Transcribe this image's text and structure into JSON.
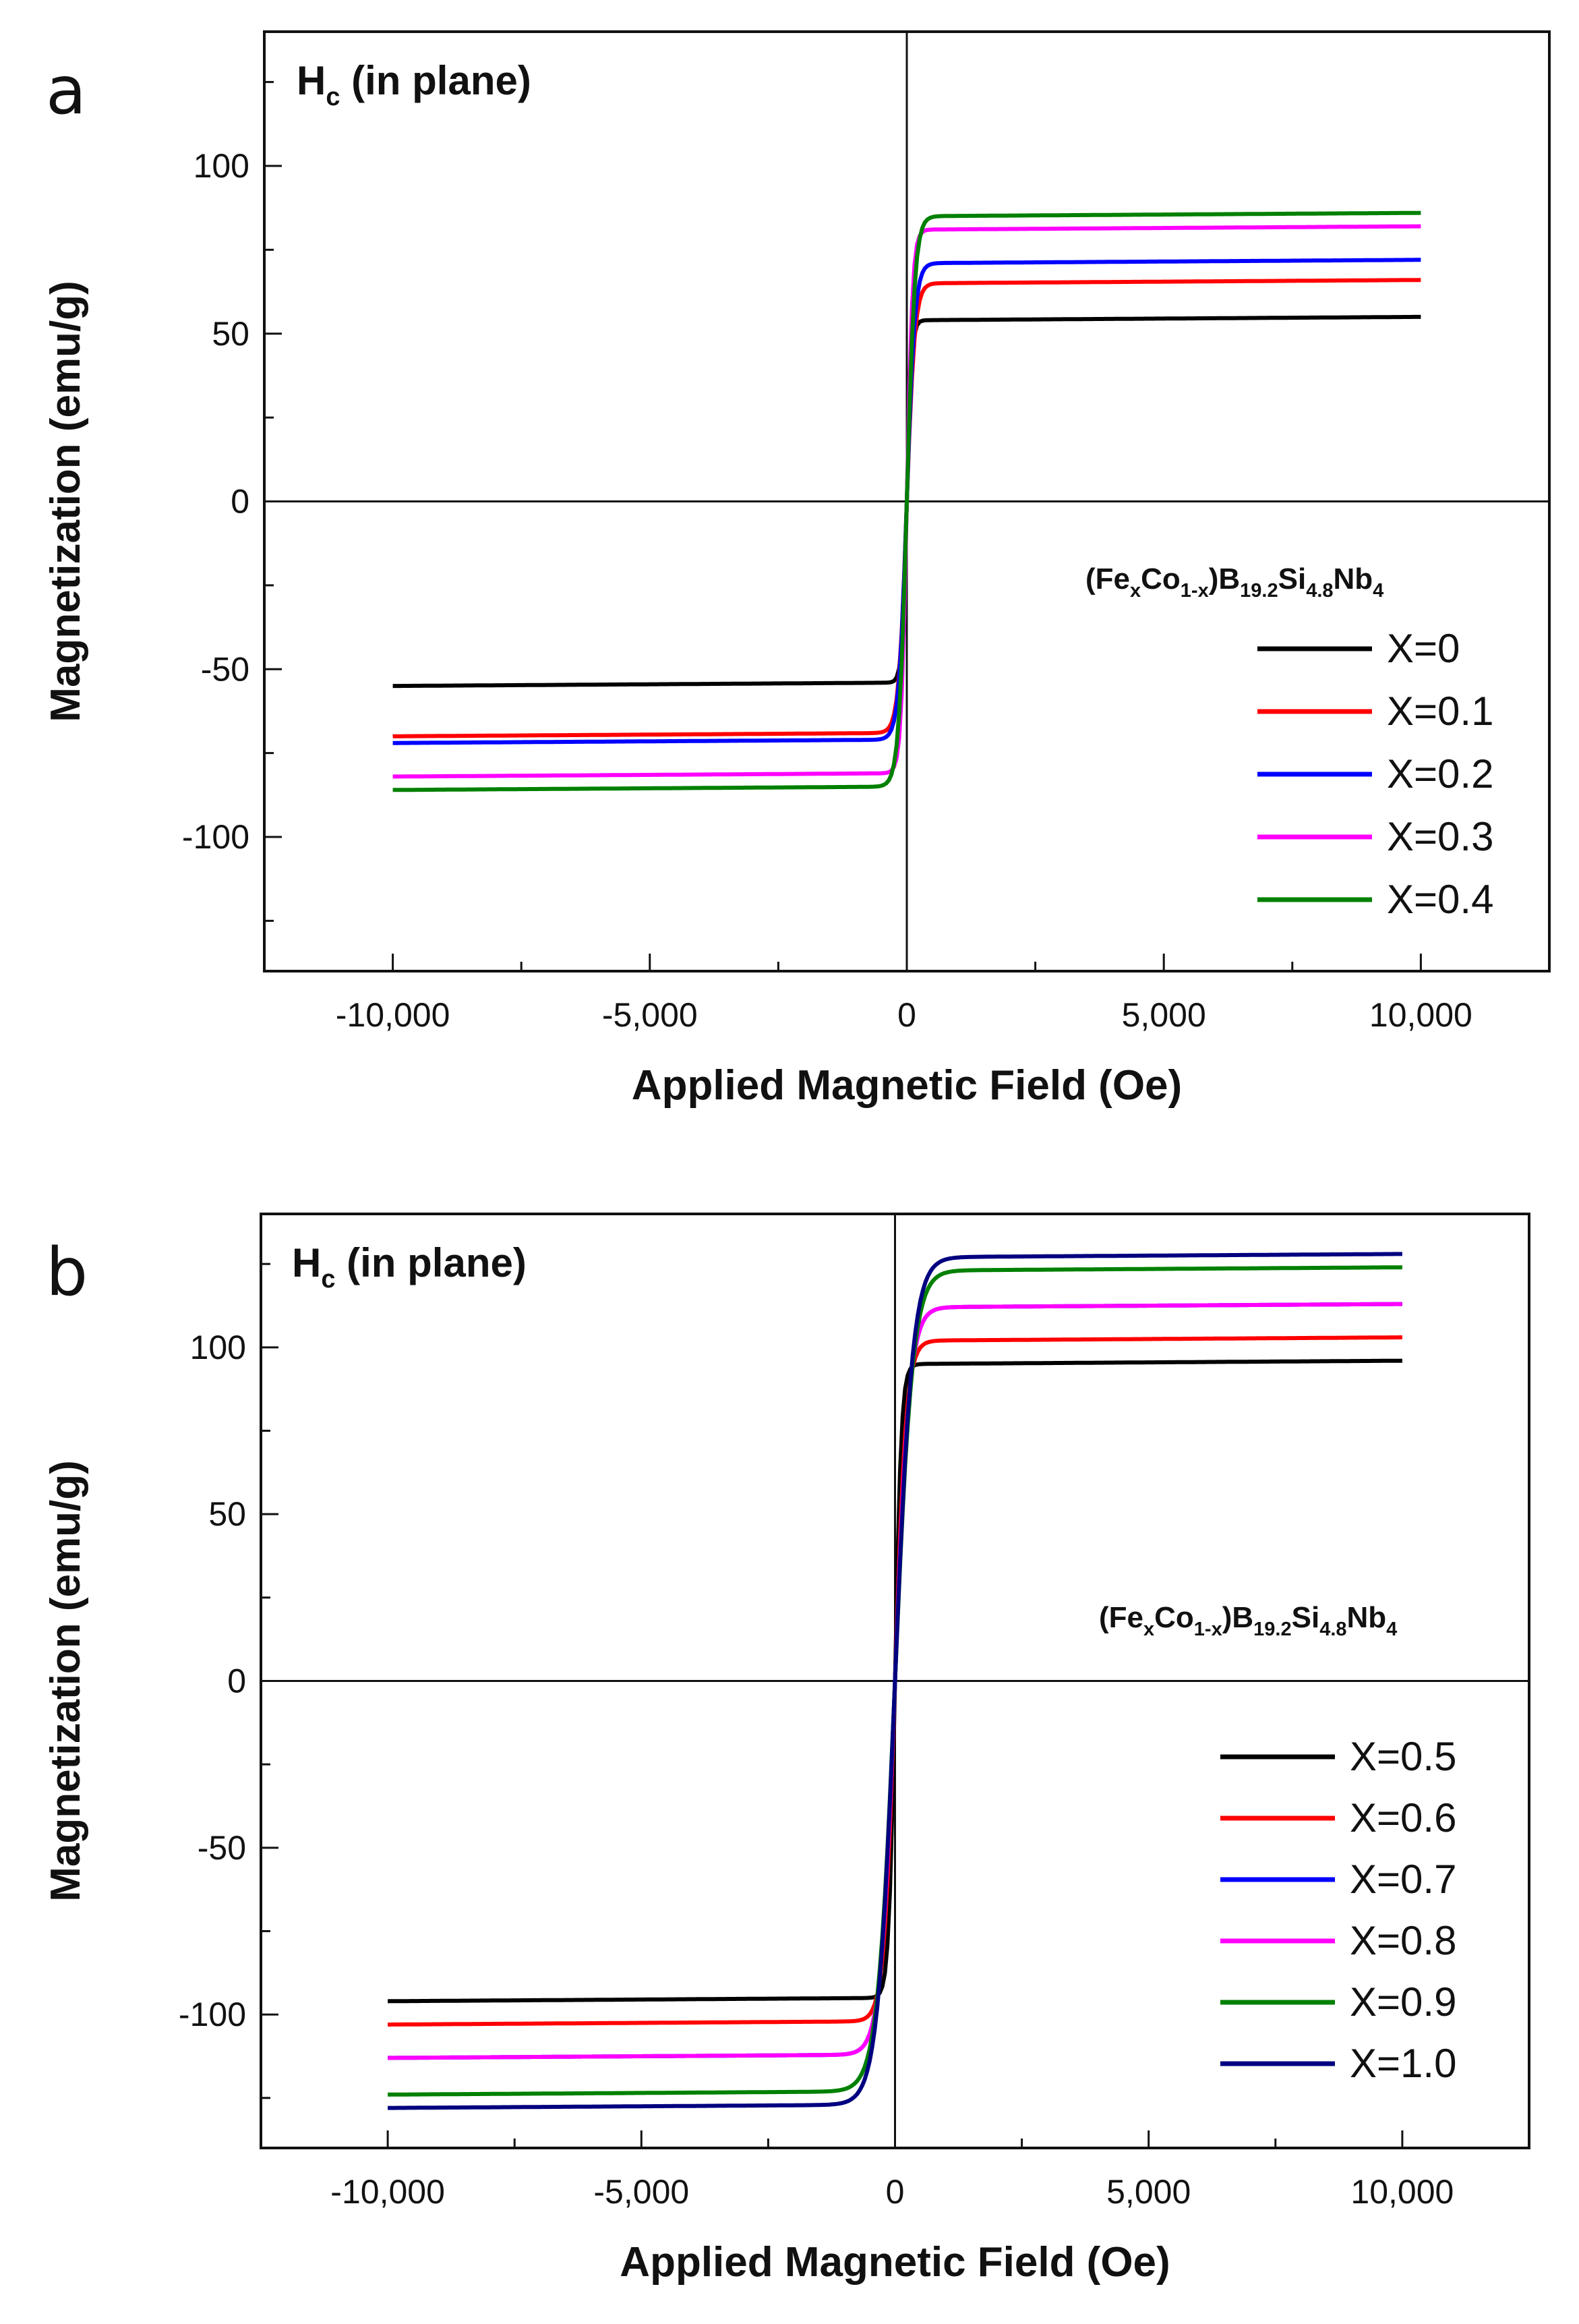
{
  "figure": {
    "formula": {
      "base": [
        "(Fe",
        "Co",
        ")B",
        "Si",
        "Nb"
      ],
      "subs": [
        "x",
        "1-x",
        "19.2",
        "4.8",
        "4"
      ]
    }
  },
  "chart_data": [
    {
      "type": "line",
      "panel": "a",
      "title": "H",
      "title_sub": "c",
      "title_suffix": " (in plane)",
      "xlabel": "Applied Magnetic Field (Oe)",
      "ylabel": "Magnetization (emu/g)",
      "xlim": [
        -12500,
        12500
      ],
      "ylim": [
        -140,
        140
      ],
      "xticks": [
        -10000,
        -5000,
        0,
        5000,
        10000
      ],
      "xtick_labels": [
        "-10,000",
        "-5,000",
        "0",
        "5,000",
        "10,000"
      ],
      "yticks": [
        -100,
        -50,
        0,
        50,
        100
      ],
      "ytick_labels": [
        "-100",
        "-50",
        "0",
        "50",
        "100"
      ],
      "legend_position": "lower-right",
      "series": [
        {
          "name": "X=0",
          "color": "#000000",
          "ms": 54,
          "mneg": 54,
          "hk": 150
        },
        {
          "name": "X=0.1",
          "color": "#ff0000",
          "ms": 65,
          "mneg": 69,
          "hk": 250
        },
        {
          "name": "X=0.2",
          "color": "#0000ff",
          "ms": 71,
          "mneg": 71,
          "hk": 250
        },
        {
          "name": "X=0.3",
          "color": "#ff00ff",
          "ms": 81,
          "mneg": 81,
          "hk": 180
        },
        {
          "name": "X=0.4",
          "color": "#008000",
          "ms": 85,
          "mneg": 85,
          "hk": 250
        }
      ]
    },
    {
      "type": "line",
      "panel": "b",
      "title": "H",
      "title_sub": "c",
      "title_suffix": " (in plane)",
      "xlabel": "Applied Magnetic Field (Oe)",
      "ylabel": "Magnetization (emu/g)",
      "xlim": [
        -12500,
        12500
      ],
      "ylim": [
        -140,
        140
      ],
      "xticks": [
        -10000,
        -5000,
        0,
        5000,
        10000
      ],
      "xtick_labels": [
        "-10,000",
        "-5,000",
        "0",
        "5,000",
        "10,000"
      ],
      "yticks": [
        -100,
        -50,
        0,
        50,
        100
      ],
      "ytick_labels": [
        "-100",
        "-50",
        "0",
        "50",
        "100"
      ],
      "legend_position": "lower-right",
      "series": [
        {
          "name": "X=0.5",
          "color": "#000000",
          "ms": 95,
          "mneg": 95,
          "hk": 200
        },
        {
          "name": "X=0.6",
          "color": "#ff0000",
          "ms": 102,
          "mneg": 102,
          "hk": 350
        },
        {
          "name": "X=0.7",
          "color": "#0000ff",
          "ms": 112,
          "mneg": 112,
          "hk": 450
        },
        {
          "name": "X=0.8",
          "color": "#ff00ff",
          "ms": 112,
          "mneg": 112,
          "hk": 450
        },
        {
          "name": "X=0.9",
          "color": "#008000",
          "ms": 123,
          "mneg": 123,
          "hk": 550
        },
        {
          "name": "X=1.0",
          "color": "#000080",
          "ms": 127,
          "mneg": 127,
          "hk": 550
        }
      ]
    }
  ]
}
